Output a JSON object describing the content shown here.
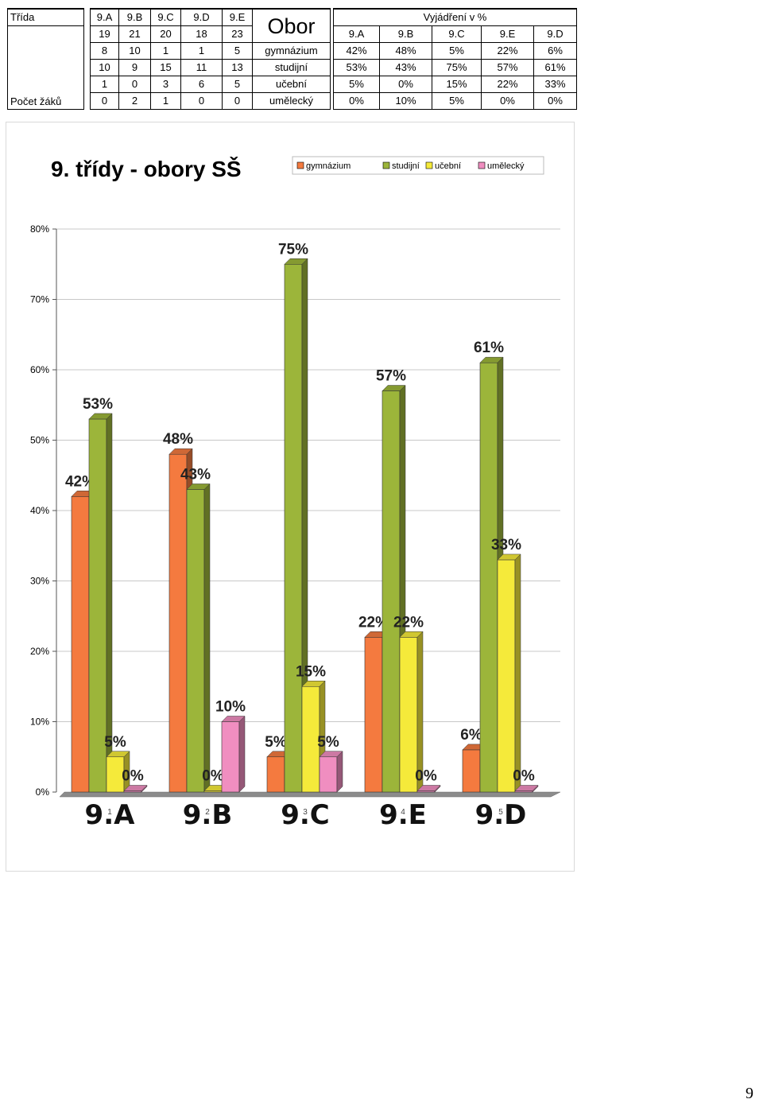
{
  "table": {
    "trida_label": "Třída",
    "pocet_label": "Počet žáků",
    "obor_label": "Obor",
    "vyjadreni_label": "Vyjádření v %",
    "class_headers": [
      "9.A",
      "9.B",
      "9.C",
      "9.D",
      "9.E"
    ],
    "totals": [
      "19",
      "21",
      "20",
      "18",
      "23"
    ],
    "fields": [
      "gymnázium",
      "studijní",
      "učební",
      "umělecký"
    ],
    "counts": [
      [
        "8",
        "10",
        "1",
        "1",
        "5"
      ],
      [
        "10",
        "9",
        "15",
        "11",
        "13"
      ],
      [
        "1",
        "0",
        "3",
        "6",
        "5"
      ],
      [
        "0",
        "2",
        "1",
        "0",
        "0"
      ]
    ],
    "pct_headers": [
      "9.A",
      "9.B",
      "9.C",
      "9.E",
      "9.D"
    ],
    "pcts": [
      [
        "42%",
        "48%",
        "5%",
        "22%",
        "6%"
      ],
      [
        "53%",
        "43%",
        "75%",
        "57%",
        "61%"
      ],
      [
        "5%",
        "0%",
        "15%",
        "22%",
        "33%"
      ],
      [
        "0%",
        "10%",
        "5%",
        "0%",
        "0%"
      ]
    ]
  },
  "chart_data": {
    "type": "bar",
    "title": "9. třídy - obory SŠ",
    "categories": [
      "9.A",
      "9.B",
      "9.C",
      "9.E",
      "9.D"
    ],
    "index_labels": [
      "1",
      "2",
      "3",
      "4",
      "5"
    ],
    "series": [
      {
        "name": "gymnázium",
        "values": [
          42,
          48,
          5,
          22,
          6
        ],
        "color": "#f47a3f"
      },
      {
        "name": "studijní",
        "values": [
          53,
          43,
          75,
          57,
          61
        ],
        "color": "#9cb53a"
      },
      {
        "name": "učební",
        "values": [
          5,
          0,
          15,
          22,
          33
        ],
        "color": "#f5ea3a"
      },
      {
        "name": "umělecký",
        "values": [
          0,
          10,
          5,
          0,
          0
        ],
        "color": "#f08ec0"
      }
    ],
    "data_labels": [
      [
        "42%",
        "48%",
        "5%",
        "22%",
        "6%"
      ],
      [
        "53%",
        "43%",
        "75%",
        "57%",
        "61%"
      ],
      [
        "5%",
        "0%",
        "15%",
        "22%",
        "33%"
      ],
      [
        "0%",
        "10%",
        "5%",
        "0%",
        "0%"
      ]
    ],
    "y_ticks": [
      "0%",
      "10%",
      "20%",
      "30%",
      "40%",
      "50%",
      "60%",
      "70%",
      "80%"
    ],
    "ylim": [
      0,
      80
    ],
    "grid": true,
    "legend_position": "top-right"
  },
  "page_number": "9"
}
